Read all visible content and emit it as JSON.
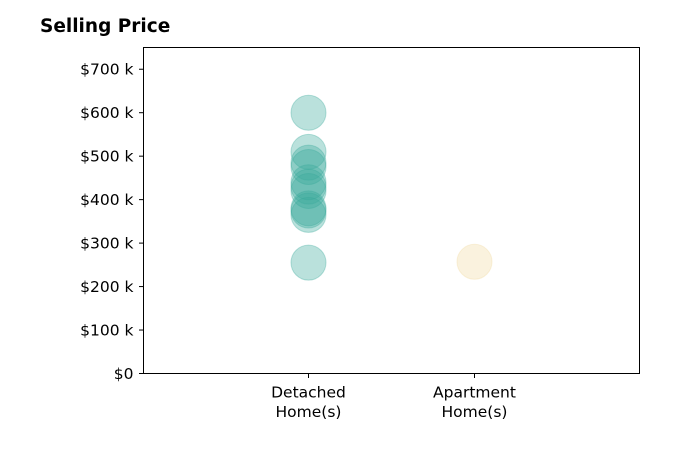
{
  "chart_data": {
    "type": "scatter",
    "title": "Selling Price",
    "xlabel": "",
    "ylabel": "",
    "categories": [
      "Detached\nHome(s)",
      "Apartment\nHome(s)"
    ],
    "ylim": [
      0,
      750000
    ],
    "yticks": [
      {
        "value": 0,
        "label": "$0"
      },
      {
        "value": 100000,
        "label": "$100 k"
      },
      {
        "value": 200000,
        "label": "$200 k"
      },
      {
        "value": 300000,
        "label": "$300 k"
      },
      {
        "value": 400000,
        "label": "$400 k"
      },
      {
        "value": 500000,
        "label": "$500 k"
      },
      {
        "value": 600000,
        "label": "$600 k"
      },
      {
        "value": 700000,
        "label": "$700 k"
      }
    ],
    "grid": false,
    "legend": "none",
    "series": [
      {
        "category": "Detached\nHome(s)",
        "color": "#3aa89a",
        "values": [
          600000,
          510000,
          485000,
          475000,
          440000,
          430000,
          420000,
          380000,
          375000,
          365000,
          255000
        ]
      },
      {
        "category": "Apartment\nHome(s)",
        "color": "#f0d9a0",
        "values": [
          257000
        ]
      }
    ]
  }
}
